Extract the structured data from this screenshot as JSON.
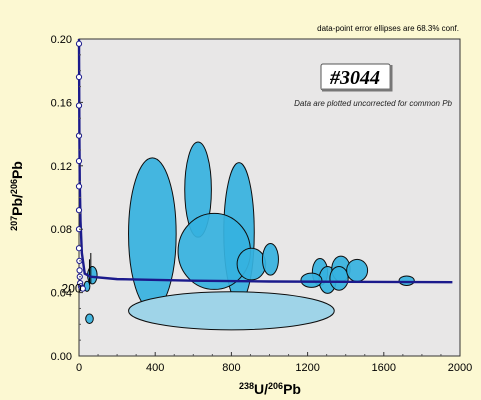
{
  "chart_data": {
    "type": "scatter",
    "subtype": "Tera-Wasserburg concordia diagram with error ellipses",
    "xlabel": "238U/206Pb",
    "ylabel": "207Pb/206Pb",
    "xlim": [
      0,
      2000
    ],
    "ylim": [
      0,
      0.2
    ],
    "x_ticks": [
      "0",
      "400",
      "800",
      "1200",
      "1600",
      "2000"
    ],
    "y_ticks": [
      "0.00",
      "0.04",
      "0.08",
      "0.12",
      "0.16",
      "0.20"
    ],
    "x_tick_values": [
      0,
      400,
      800,
      1200,
      1600,
      2000
    ],
    "y_tick_values": [
      0,
      0.04,
      0.08,
      0.12,
      0.16,
      0.2
    ],
    "grid": false,
    "note": "data-point error ellipses are 68.3% conf.",
    "sample_label": "#3044",
    "subtitle": "Data are plotted uncorrected for common Pb",
    "concordia_age_label": "200",
    "concordia_age_point": {
      "x": 24,
      "y": 0.0425
    },
    "concordia_curve": [
      {
        "x": 0,
        "y": 0.2
      },
      {
        "x": 0.5,
        "y": 0.185
      },
      {
        "x": 1,
        "y": 0.17
      },
      {
        "x": 2,
        "y": 0.14
      },
      {
        "x": 4,
        "y": 0.11
      },
      {
        "x": 8,
        "y": 0.085
      },
      {
        "x": 15,
        "y": 0.065
      },
      {
        "x": 30,
        "y": 0.052
      },
      {
        "x": 60,
        "y": 0.05
      },
      {
        "x": 200,
        "y": 0.0485
      },
      {
        "x": 600,
        "y": 0.0475
      },
      {
        "x": 1000,
        "y": 0.047
      },
      {
        "x": 1400,
        "y": 0.0468
      },
      {
        "x": 1960,
        "y": 0.0466
      }
    ],
    "concordia_markers": [
      {
        "x": 0,
        "y": 0.197
      },
      {
        "x": 0,
        "y": 0.176
      },
      {
        "x": 0,
        "y": 0.158
      },
      {
        "x": 0,
        "y": 0.139
      },
      {
        "x": 0,
        "y": 0.123
      },
      {
        "x": 0,
        "y": 0.107
      },
      {
        "x": 0,
        "y": 0.092
      },
      {
        "x": 0,
        "y": 0.08
      },
      {
        "x": 0,
        "y": 0.068
      },
      {
        "x": 2,
        "y": 0.06
      },
      {
        "x": 3,
        "y": 0.054
      },
      {
        "x": 4,
        "y": 0.05
      },
      {
        "x": 6,
        "y": 0.046
      },
      {
        "x": 10,
        "y": 0.044
      },
      {
        "x": 14,
        "y": 0.043
      },
      {
        "x": 20,
        "y": 0.0425
      }
    ],
    "ellipses": [
      {
        "x": 385,
        "y": 0.077,
        "rx": 125,
        "ry": 0.048,
        "dark": true
      },
      {
        "x": 625,
        "y": 0.105,
        "rx": 70,
        "ry": 0.03,
        "dark": true
      },
      {
        "x": 840,
        "y": 0.078,
        "rx": 80,
        "ry": 0.044,
        "dark": true
      },
      {
        "x": 710,
        "y": 0.066,
        "rx": 190,
        "ry": 0.024,
        "dark": true
      },
      {
        "x": 905,
        "y": 0.058,
        "rx": 75,
        "ry": 0.01,
        "dark": true
      },
      {
        "x": 1005,
        "y": 0.061,
        "rx": 42,
        "ry": 0.01,
        "dark": true
      },
      {
        "x": 1265,
        "y": 0.053,
        "rx": 40,
        "ry": 0.0085,
        "dark": true
      },
      {
        "x": 1305,
        "y": 0.048,
        "rx": 45,
        "ry": 0.0085,
        "dark": true
      },
      {
        "x": 1220,
        "y": 0.0478,
        "rx": 55,
        "ry": 0.0045,
        "dark": true
      },
      {
        "x": 1375,
        "y": 0.055,
        "rx": 48,
        "ry": 0.008,
        "dark": true
      },
      {
        "x": 1365,
        "y": 0.049,
        "rx": 48,
        "ry": 0.0075,
        "dark": true
      },
      {
        "x": 1460,
        "y": 0.054,
        "rx": 55,
        "ry": 0.007,
        "dark": true
      },
      {
        "x": 1720,
        "y": 0.0475,
        "rx": 40,
        "ry": 0.003,
        "dark": true
      },
      {
        "x": 70,
        "y": 0.051,
        "rx": 25,
        "ry": 0.0055,
        "dark": true
      },
      {
        "x": 55,
        "y": 0.0235,
        "rx": 20,
        "ry": 0.003,
        "dark": true
      },
      {
        "x": 42,
        "y": 0.044,
        "rx": 15,
        "ry": 0.0032,
        "dark": true
      },
      {
        "x": 800,
        "y": 0.0285,
        "rx": 540,
        "ry": 0.012,
        "dark": false
      }
    ],
    "error_bars": [
      {
        "x": 55,
        "y0": 0.045,
        "y1": 0.061
      },
      {
        "x": 62,
        "y0": 0.046,
        "y1": 0.065
      }
    ]
  }
}
